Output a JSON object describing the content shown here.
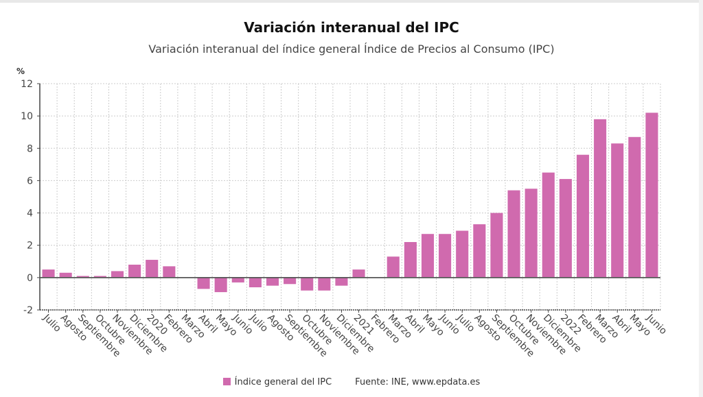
{
  "header": {
    "title": "Variación interanual del IPC",
    "subtitle": "Variación interanual del índice general Índice de Precios al Consumo (IPC)"
  },
  "legend": {
    "series_label": "Índice general del IPC",
    "source": "Fuente: INE, www.epdata.es"
  },
  "colors": {
    "bar": "#d06aae",
    "grid": "#cccccc",
    "axis": "#444444",
    "zero_line": "#555555"
  },
  "chart_data": {
    "type": "bar",
    "title": "Variación interanual del IPC",
    "subtitle": "Variación interanual del índice general Índice de Precios al Consumo (IPC)",
    "xlabel": "",
    "ylabel": "%",
    "ylim": [
      -2,
      12
    ],
    "yticks": [
      -2,
      0,
      2,
      4,
      6,
      8,
      10,
      12
    ],
    "grid": true,
    "legend_position": "bottom",
    "categories": [
      "Julio",
      "Agosto",
      "Septiembre",
      "Octubre",
      "Noviembre",
      "Diciembre",
      "2020",
      "Febrero",
      "Marzo",
      "Abril",
      "Mayo",
      "Junio",
      "Julio",
      "Agosto",
      "Septiembre",
      "Octubre",
      "Noviembre",
      "Diciembre",
      "2021",
      "Febrero",
      "Marzo",
      "Abril",
      "Mayo",
      "Junio",
      "Julio",
      "Agosto",
      "Septiembre",
      "Octubre",
      "Noviembre",
      "Diciembre",
      "2022",
      "Febrero",
      "Marzo",
      "Abril",
      "Mayo",
      "Junio"
    ],
    "series": [
      {
        "name": "Índice general del IPC",
        "values": [
          0.5,
          0.3,
          0.1,
          0.1,
          0.4,
          0.8,
          1.1,
          0.7,
          0.0,
          -0.7,
          -0.9,
          -0.3,
          -0.6,
          -0.5,
          -0.4,
          -0.8,
          -0.8,
          -0.5,
          0.5,
          0.0,
          1.3,
          2.2,
          2.7,
          2.7,
          2.9,
          3.3,
          4.0,
          5.4,
          5.5,
          6.5,
          6.1,
          7.6,
          9.8,
          8.3,
          8.7,
          10.2
        ]
      }
    ]
  }
}
